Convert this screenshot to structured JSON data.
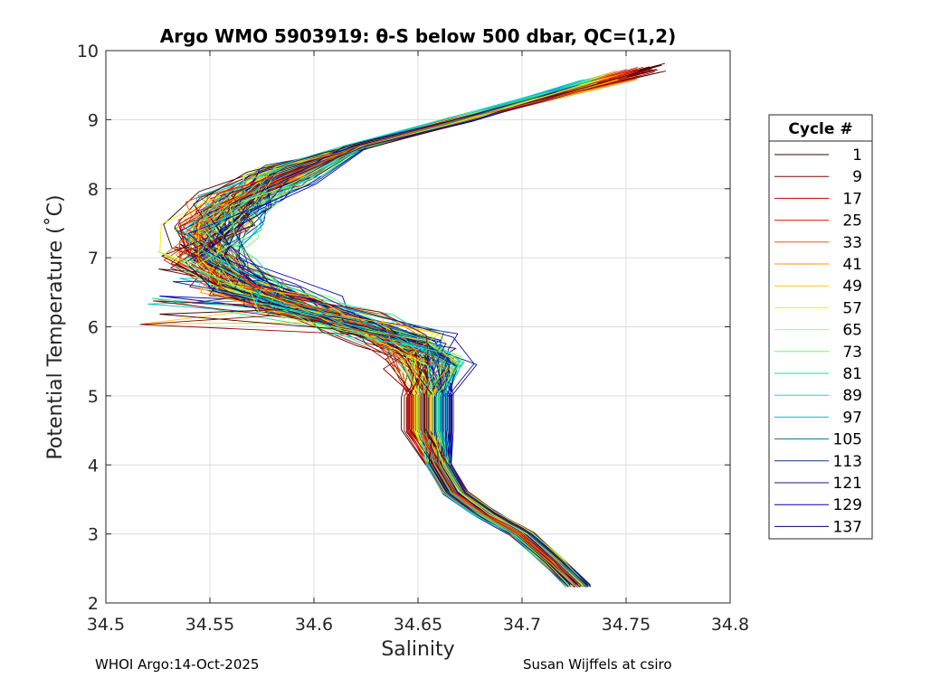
{
  "chart_data": {
    "type": "line",
    "title": "Argo WMO 5903919: θ-S below 500 dbar,  QC=(1,2)",
    "xlabel": "Salinity",
    "ylabel": "Potential Temperature (˚C)",
    "xlim": [
      34.5,
      34.8
    ],
    "ylim": [
      2,
      10
    ],
    "xticks": [
      "34.5",
      "34.55",
      "34.6",
      "34.65",
      "34.7",
      "34.75",
      "34.8"
    ],
    "yticks": [
      "2",
      "3",
      "4",
      "5",
      "6",
      "7",
      "8",
      "9",
      "10"
    ],
    "grid": true,
    "legend_title": "Cycle #",
    "legend_position": "right",
    "legend": [
      {
        "label": "1",
        "color": "#3d0000"
      },
      {
        "label": "9",
        "color": "#8b0000"
      },
      {
        "label": "17",
        "color": "#c80000"
      },
      {
        "label": "25",
        "color": "#e61e00"
      },
      {
        "label": "33",
        "color": "#ff5000"
      },
      {
        "label": "41",
        "color": "#ff8c00"
      },
      {
        "label": "49",
        "color": "#ffc800"
      },
      {
        "label": "57",
        "color": "#f0f000"
      },
      {
        "label": "65",
        "color": "#b4ff3c"
      },
      {
        "label": "73",
        "color": "#64ff64"
      },
      {
        "label": "81",
        "color": "#1edc96"
      },
      {
        "label": "89",
        "color": "#00e6dc"
      },
      {
        "label": "97",
        "color": "#00bedc"
      },
      {
        "label": "105",
        "color": "#007896"
      },
      {
        "label": "113",
        "color": "#0a328c"
      },
      {
        "label": "121",
        "color": "#14148c"
      },
      {
        "label": "129",
        "color": "#0000b4"
      },
      {
        "label": "137",
        "color": "#00007d"
      }
    ],
    "reference_profile": [
      {
        "s": 34.727,
        "t": 2.25
      },
      {
        "s": 34.715,
        "t": 2.6
      },
      {
        "s": 34.7,
        "t": 3.0
      },
      {
        "s": 34.682,
        "t": 3.3
      },
      {
        "s": 34.668,
        "t": 3.6
      },
      {
        "s": 34.66,
        "t": 4.0
      },
      {
        "s": 34.655,
        "t": 4.5
      },
      {
        "s": 34.655,
        "t": 5.0
      },
      {
        "s": 34.655,
        "t": 5.5
      },
      {
        "s": 34.645,
        "t": 5.8
      },
      {
        "s": 34.62,
        "t": 6.05
      },
      {
        "s": 34.59,
        "t": 6.3
      },
      {
        "s": 34.565,
        "t": 6.6
      },
      {
        "s": 34.55,
        "t": 7.0
      },
      {
        "s": 34.55,
        "t": 7.4
      },
      {
        "s": 34.562,
        "t": 7.8
      },
      {
        "s": 34.585,
        "t": 8.2
      },
      {
        "s": 34.62,
        "t": 8.6
      },
      {
        "s": 34.67,
        "t": 9.0
      },
      {
        "s": 34.72,
        "t": 9.5
      }
    ]
  },
  "footer": {
    "left": "WHOI Argo:14-Oct-2025",
    "right": "Susan Wijffels at csiro"
  }
}
